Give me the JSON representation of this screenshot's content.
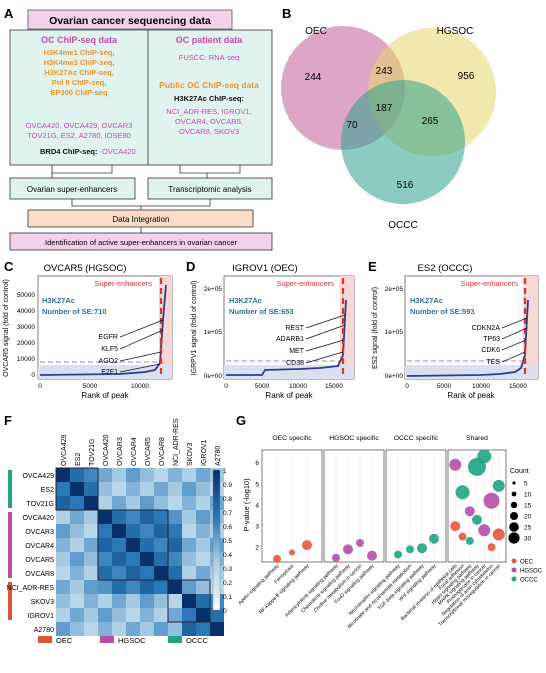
{
  "panel_labels": [
    "A",
    "B",
    "C",
    "D",
    "E",
    "F",
    "G"
  ],
  "panelA": {
    "title": "Ovarian cancer sequencing data",
    "left": {
      "heading": "OC ChIP-seq data",
      "marks": [
        "H3K4me1 ChIP-seq,",
        "H3K4me3 ChIP-seq,",
        "H3K27Ac ChIP-seq,",
        "Pol II ChIP-seq,",
        "EP300 ChIP-seq"
      ],
      "cells": [
        "OVCA420, OVCA429, OVCAR3",
        "TOV21G, ES2, A2780, IOSE80"
      ],
      "brd4_label": "BRD4 ChIP-seq:",
      "brd4_cell": "OVCA420"
    },
    "right": {
      "heading": "OC patient data",
      "fuscc": "FUSCC: RNA-seq",
      "public_heading": "Public OC ChIP-seq data",
      "h3k": "H3K27Ac ChIP-seq:",
      "cells": [
        "NCI_ADR-RES, IGROV1,",
        "OVCAR4, OVCAR5,",
        "OVCAR8, SKOV3"
      ]
    },
    "box_left": "Ovarian super-enhancers",
    "box_right": "Transcriptomic analysis",
    "integration": "Data Integration",
    "final": "Identification of active super-enhancers in ovarian cancer"
  },
  "panelB": {
    "sets": [
      "OEC",
      "HGSOC",
      "OCCC"
    ],
    "counts": {
      "oec_only": "244",
      "oec_hgsoc": "243",
      "hgsoc_only": "956",
      "all": "187",
      "oec_occc": "70",
      "hgsoc_occc": "265",
      "occc_only": "516"
    },
    "colors": {
      "oec": "#b94f8e",
      "hgsoc": "#e5d66a",
      "occc": "#2ea08a"
    }
  },
  "panelsCDE": [
    {
      "title": "OVCAR5 (HGSOC)",
      "mark": "H3K27Ac",
      "number": "Number of SE:710",
      "ylabel": "OVCAR5 signal (fold of control)",
      "yticks": [
        "0",
        "10000",
        "20000",
        "30000",
        "40000",
        "50000"
      ],
      "xticks": [
        "0",
        "5000",
        "10000"
      ],
      "genes": [
        "EGFR",
        "KLF5",
        "AGO2",
        "E2F1"
      ],
      "se": "Super-enhancers",
      "xlabel": "Rank of peak"
    },
    {
      "title": "IGROV1 (OEC)",
      "mark": "H3K27Ac",
      "number": "Number of SE:653",
      "ylabel": "IGRPV1 signal (fold of control)",
      "yticks": [
        "0e+00",
        "1e+05",
        "2e+05"
      ],
      "xticks": [
        "0",
        "5000",
        "10000",
        "15000"
      ],
      "genes": [
        "REST",
        "ADARB1",
        "MET",
        "CD38"
      ],
      "se": "Super-enhancers",
      "xlabel": "Rank of peak"
    },
    {
      "title": "ES2 (OCCC)",
      "mark": "H3K27Ac",
      "number": "Number of SE:593",
      "ylabel": "ES2 signal (fold of control)",
      "yticks": [
        "0e+00",
        "1e+05",
        "2e+05"
      ],
      "xticks": [
        "0",
        "5000",
        "10000",
        "15000"
      ],
      "genes": [
        "CDKN2A",
        "TP63",
        "CDK6",
        "TES"
      ],
      "se": "Super-enhancers",
      "xlabel": "Rank of peak"
    }
  ],
  "panelF": {
    "labels": [
      "OVCA429",
      "ES2",
      "TOV21G",
      "OVCA420",
      "OVCAR3",
      "OVCAR4",
      "OVCAR5",
      "OVCAR8",
      "NCI_ADR-RES",
      "SKOV3",
      "IGROV1",
      "A2780"
    ],
    "scale": [
      "1",
      "0.9",
      "0.8",
      "0.7",
      "0.6",
      "0.5",
      "0.4",
      "0.3",
      "0.2",
      "0.1",
      "0"
    ],
    "legend": [
      "OEC",
      "HGSOC",
      "OCCC"
    ],
    "legend_colors": [
      "#e0533a",
      "#b64ea8",
      "#1ea583"
    ]
  },
  "panelG": {
    "facets": [
      "OEC specific",
      "HGSOC specific",
      "OCCC specific",
      "Shared"
    ],
    "ylabel": "P-value (-log10)",
    "yticks": [
      "2",
      "3",
      "4",
      "5",
      "6"
    ],
    "pathways_oec": [
      "Apelin signaling pathway",
      "Ferroptosis",
      "NF-kappa B signaling pathway"
    ],
    "pathways_hgsoc": [
      "Adipocytokine signaling pathway",
      "Chemokine signaling pathway",
      "Choline metabolism in cancer",
      "FoxO signaling pathway"
    ],
    "pathways_occc": [
      "Neurotrophin signaling pathway",
      "Nicotinate and nicotinamide metabolism",
      "TGF-beta signaling pathway",
      "Wnt signaling pathway"
    ],
    "pathways_shared": [
      "Bacterial invasion of epithelial cells",
      "Focal adhesion",
      "Hippo signaling pathway",
      "MAPK signaling pathway",
      "Proteoglycans in cancer",
      "Regulation of actin cytoskeleton",
      "Transcriptional misregulation in cancer"
    ],
    "count_title": "Count",
    "counts": [
      "5",
      "10",
      "15",
      "20",
      "25",
      "30"
    ],
    "legend": [
      "OEC",
      "HGSOC",
      "OCCC"
    ],
    "legend_colors": [
      "#e8553a",
      "#b64ea8",
      "#1ea583"
    ]
  }
}
